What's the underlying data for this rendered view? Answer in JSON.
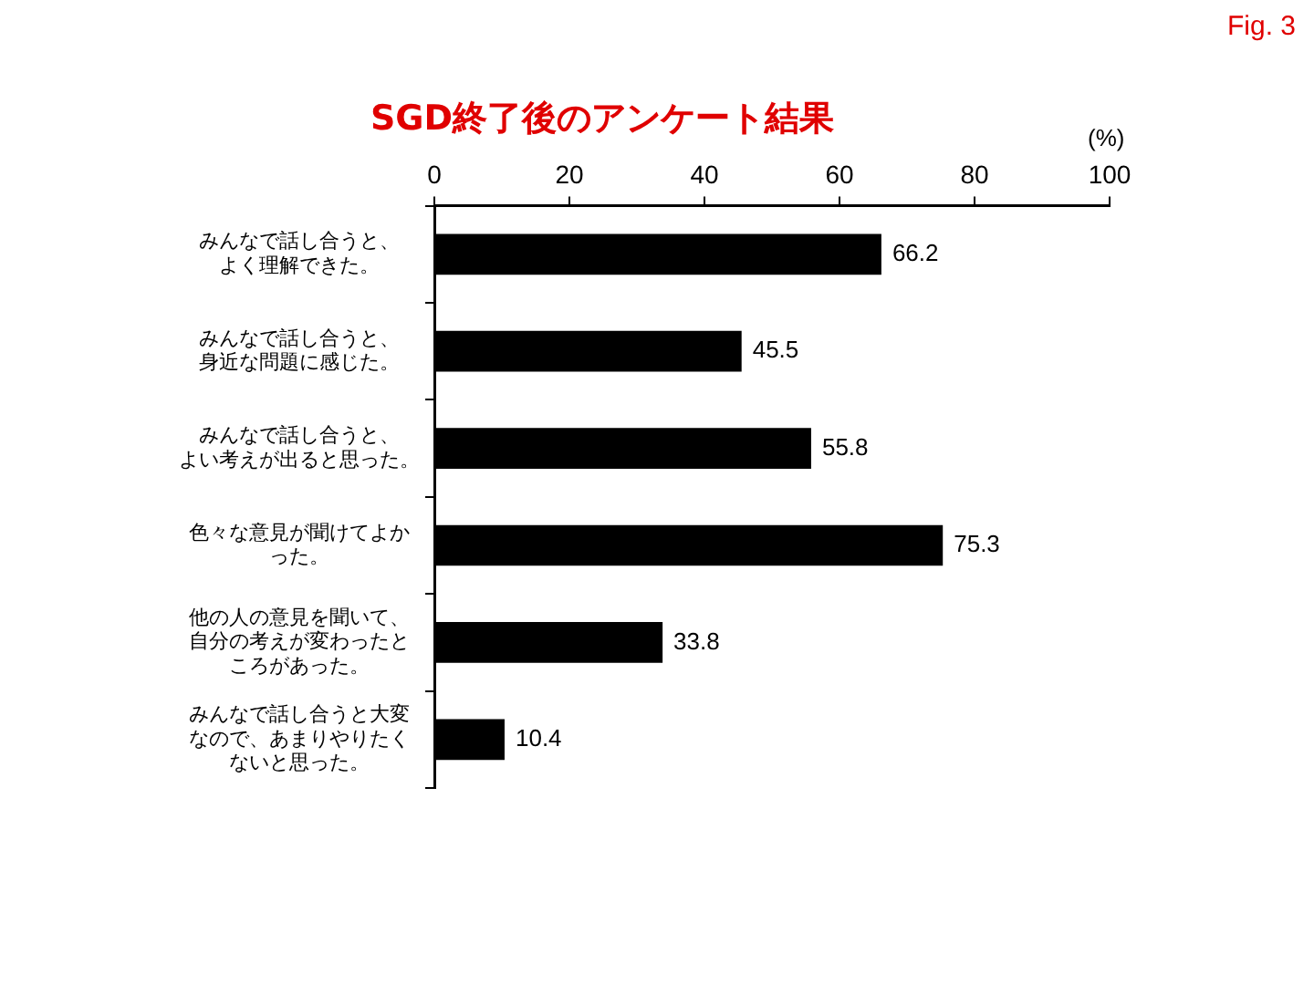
{
  "chart_data": {
    "type": "bar",
    "orientation": "horizontal",
    "title": "SGD終了後のアンケート結果",
    "xlabel": "(%)",
    "categories": [
      "みんなで話し合うと、よく理解できた。",
      "みんなで話し合うと、身近な問題に感じた。",
      "みんなで話し合うと、よい考えが出ると思った。",
      "色々な意見が聞けてよかった。",
      "他の人の意見を聞いて、自分の考えが変わったところがあった。",
      "みんなで話し合うと大変なので、あまりやりたくないと思った。"
    ],
    "values": [
      66.2,
      45.5,
      55.8,
      75.3,
      33.8,
      10.4
    ],
    "color": "#000000",
    "xlim": [
      0,
      100
    ],
    "xticks": [
      0,
      20,
      40,
      60,
      80,
      100
    ],
    "grid": false,
    "data_labels": true,
    "legend": false,
    "annotations": [
      "Fig. 3"
    ]
  }
}
